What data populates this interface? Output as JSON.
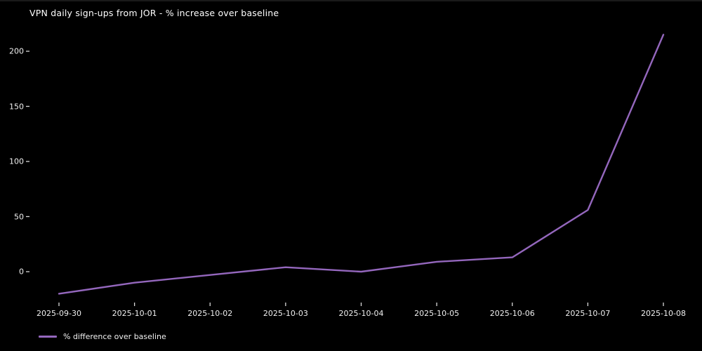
{
  "title": "VPN daily sign-ups from JOR - % increase over baseline",
  "chart_data": {
    "type": "line",
    "title": "VPN daily sign-ups from JOR - % increase over baseline",
    "x": [
      "2025-09-30",
      "2025-10-01",
      "2025-10-02",
      "2025-10-03",
      "2025-10-04",
      "2025-10-05",
      "2025-10-06",
      "2025-10-07",
      "2025-10-08"
    ],
    "series": [
      {
        "name": "% difference over baseline",
        "color": "#9467bd",
        "values": [
          -20,
          -10,
          -3,
          4,
          0,
          9,
          13,
          56,
          215
        ]
      }
    ],
    "xlabel": "",
    "ylabel": "",
    "yticks": [
      0,
      50,
      100,
      150,
      200
    ],
    "ylim": [
      -30,
      222
    ],
    "grid": false,
    "legend": {
      "label": "% difference over baseline",
      "position": "bottom-left"
    },
    "background": "#000000",
    "text_color": "#f0f0f0",
    "tick_color": "#d9d9d9"
  }
}
